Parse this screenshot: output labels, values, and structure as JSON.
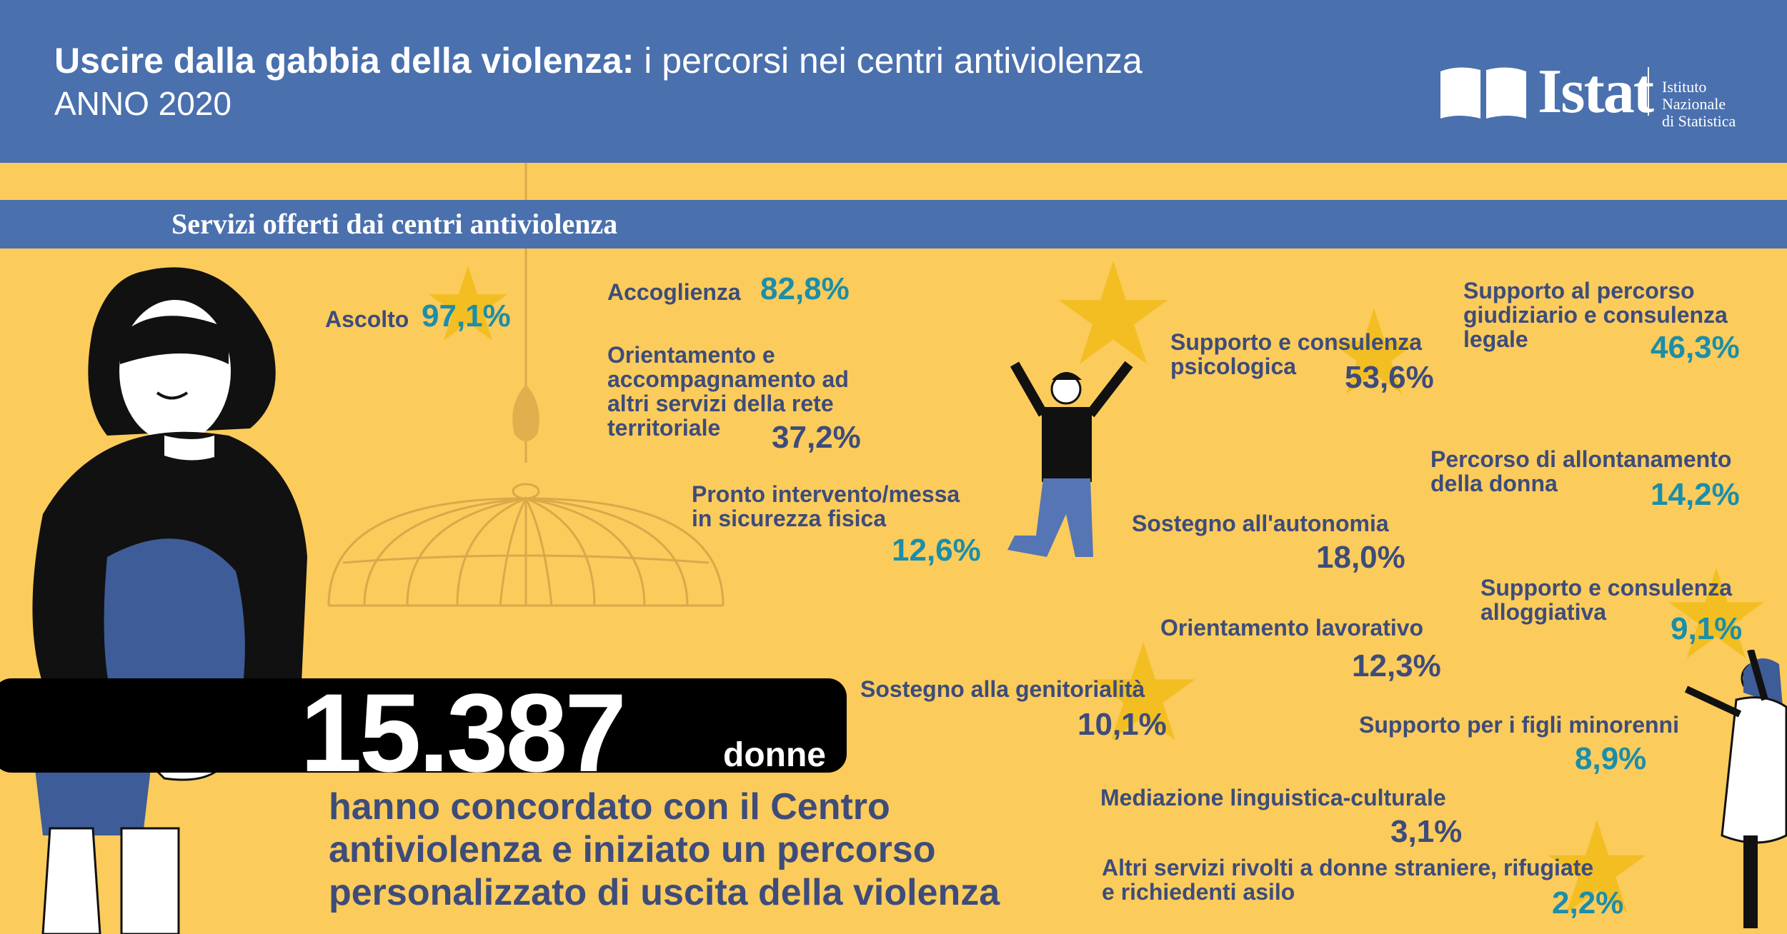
{
  "header": {
    "title_bold": "Uscire dalla gabbia della violenza:",
    "title_rest": " i percorsi nei centri antiviolenza",
    "year": "ANNO 2020"
  },
  "logo": {
    "word": "Istat",
    "institute_line1": "Istituto Nazionale",
    "institute_line2": "di Statistica"
  },
  "section_title": "Servizi offerti dai centri antiviolenza",
  "services": [
    {
      "label": "Ascolto",
      "value": "97,1%"
    },
    {
      "label": "Accoglienza",
      "value": "82,8%"
    },
    {
      "label": "Orientamento e accompagnamento ad altri servizi della rete territoriale",
      "line1": "Orientamento e",
      "line2": "accompagnamento ad",
      "line3": "altri servizi della rete",
      "line4": "territoriale",
      "value": "37,2%"
    },
    {
      "label": "Pronto intervento/messa in sicurezza fisica",
      "line1": "Pronto intervento/messa",
      "line2": "in sicurezza fisica",
      "value": "12,6%"
    },
    {
      "label": "Supporto e consulenza psicologica",
      "line1": "Supporto e consulenza",
      "line2": "psicologica",
      "value": "53,6%"
    },
    {
      "label": "Supporto al percorso giudiziario e consulenza legale",
      "line1": "Supporto al percorso",
      "line2": "giudiziario e consulenza",
      "line3": "legale",
      "value": "46,3%"
    },
    {
      "label": "Percorso di allontanamento della donna",
      "line1": "Percorso di allontanamento",
      "line2": "della donna",
      "value": "14,2%"
    },
    {
      "label": "Sostegno all'autonomia",
      "value": "18,0%"
    },
    {
      "label": "Supporto e consulenza alloggiativa",
      "line1": "Supporto e consulenza",
      "line2": "alloggiativa",
      "value": "9,1%"
    },
    {
      "label": "Orientamento lavorativo",
      "value": "12,3%"
    },
    {
      "label": "Sostegno alla genitorialità",
      "value": "10,1%"
    },
    {
      "label": "Supporto per i figli minorenni",
      "value": "8,9%"
    },
    {
      "label": "Mediazione linguistica-culturale",
      "value": "3,1%"
    },
    {
      "label": "Altri servizi rivolti a donne straniere, rifugiate e richiedenti asilo",
      "line1": "Altri servizi rivolti a donne straniere, rifugiate",
      "line2": "e richiedenti asilo",
      "value": "2,2%"
    }
  ],
  "highlight": {
    "number": "15.387",
    "unit": "donne",
    "sentence_line1": "hanno concordato con il Centro",
    "sentence_line2": "antiviolenza e iniziato un percorso",
    "sentence_line3": "personalizzato di uscita della violenza"
  },
  "colors": {
    "background": "#FBCB5C",
    "header": "#4A70AE",
    "navy_text": "#3D4C7A",
    "teal_value": "#1B8EA8",
    "star": "#F2BE22"
  }
}
